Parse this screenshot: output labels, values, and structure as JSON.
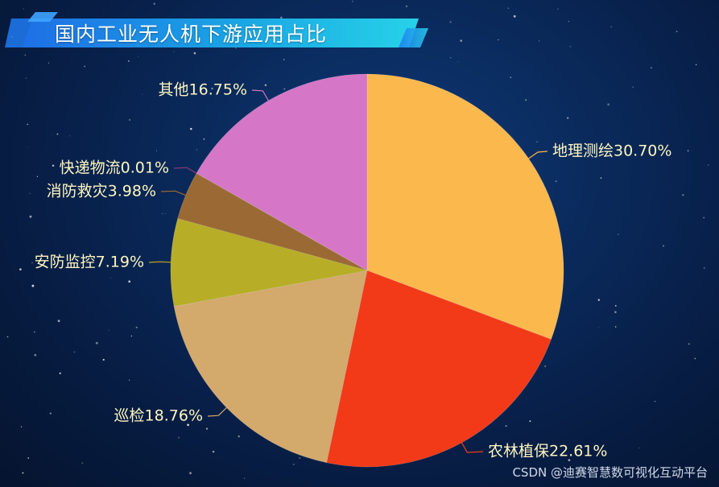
{
  "title": "国内工业无人机下游应用占比",
  "watermark": "CSDN @迪赛智慧数可视化互动平台",
  "chart_data": {
    "type": "pie",
    "title": "国内工业无人机下游应用占比",
    "unit": "%",
    "start_angle_deg": 0,
    "direction": "clockwise",
    "slices": [
      {
        "name": "地理测绘",
        "value": 30.7,
        "label": "地理测绘30.70%",
        "color": "#fbb84c"
      },
      {
        "name": "农林植保",
        "value": 22.61,
        "label": "农林植保22.61%",
        "color": "#f23a18"
      },
      {
        "name": "巡检",
        "value": 18.76,
        "label": "巡检18.76%",
        "color": "#d3a96c"
      },
      {
        "name": "安防监控",
        "value": 7.19,
        "label": "安防监控7.19%",
        "color": "#b8ad26"
      },
      {
        "name": "消防救灾",
        "value": 3.98,
        "label": "消防救灾3.98%",
        "color": "#9b6a34"
      },
      {
        "name": "快递物流",
        "value": 0.01,
        "label": "快递物流0.01%",
        "color": "#8d3a7a"
      },
      {
        "name": "其他",
        "value": 16.75,
        "label": "其他16.75%",
        "color": "#d676c6"
      }
    ]
  }
}
